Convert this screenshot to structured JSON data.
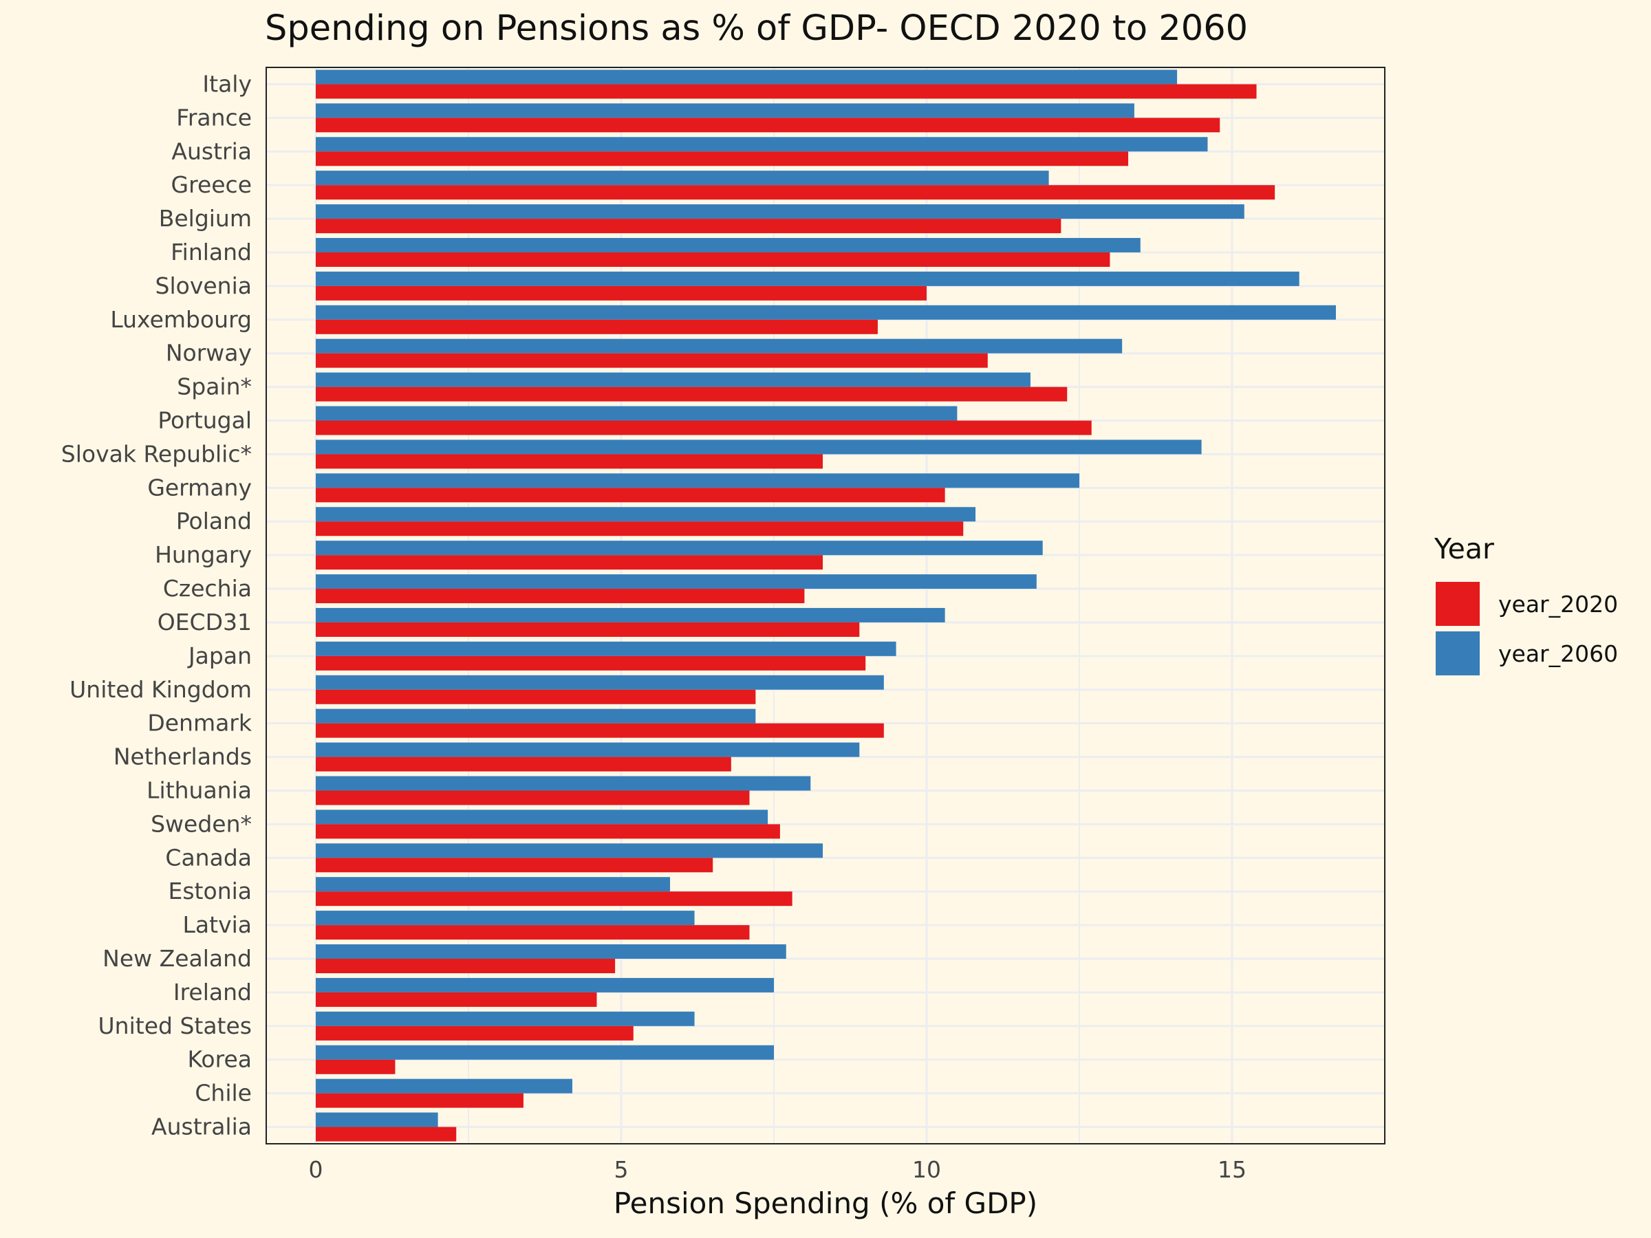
{
  "chart_data": {
    "type": "bar",
    "orientation": "horizontal",
    "title": "Spending on Pensions as % of GDP- OECD 2020 to 2060",
    "xlabel": "Pension Spending (% of GDP)",
    "ylabel": "",
    "xlim": [
      -0.8,
      17.5
    ],
    "xticks": [
      0,
      5,
      10,
      15
    ],
    "grid": true,
    "legend": {
      "title": "Year",
      "position": "right"
    },
    "categories": [
      "Italy",
      "France",
      "Austria",
      "Greece",
      "Belgium",
      "Finland",
      "Slovenia",
      "Luxembourg",
      "Norway",
      "Spain*",
      "Portugal",
      "Slovak Republic*",
      "Germany",
      "Poland",
      "Hungary",
      "Czechia",
      "OECD31",
      "Japan",
      "United Kingdom",
      "Denmark",
      "Netherlands",
      "Lithuania",
      "Sweden*",
      "Canada",
      "Estonia",
      "Latvia",
      "New Zealand",
      "Ireland",
      "United States",
      "Korea",
      "Chile",
      "Australia"
    ],
    "series": [
      {
        "name": "year_2020",
        "color": "#e41a1c",
        "values": [
          15.4,
          14.8,
          13.3,
          15.7,
          12.2,
          13.0,
          10.0,
          9.2,
          11.0,
          12.3,
          12.7,
          8.3,
          10.3,
          10.6,
          8.3,
          8.0,
          8.9,
          9.0,
          7.2,
          9.3,
          6.8,
          7.1,
          7.6,
          6.5,
          7.8,
          7.1,
          4.9,
          4.6,
          5.2,
          1.3,
          3.4,
          2.3
        ]
      },
      {
        "name": "year_2060",
        "color": "#377eb8",
        "values": [
          14.1,
          13.4,
          14.6,
          12.0,
          15.2,
          13.5,
          16.1,
          16.7,
          13.2,
          11.7,
          10.5,
          14.5,
          12.5,
          10.8,
          11.9,
          11.8,
          10.3,
          9.5,
          9.3,
          7.2,
          8.9,
          8.1,
          7.4,
          8.3,
          5.8,
          6.2,
          7.7,
          7.5,
          6.2,
          7.5,
          4.2,
          2.0
        ]
      }
    ]
  }
}
